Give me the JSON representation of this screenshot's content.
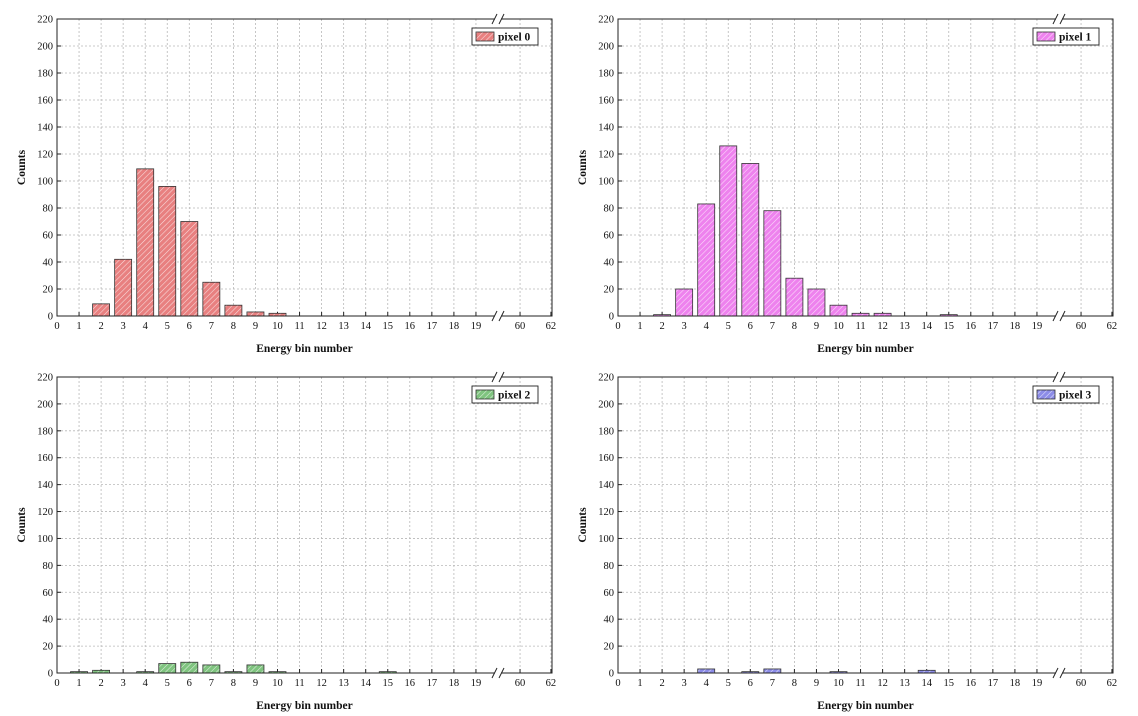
{
  "chart_data": [
    {
      "type": "bar",
      "xlabel": "Energy bin number",
      "ylabel": "Counts",
      "ylim": [
        0,
        220
      ],
      "yticks": [
        0,
        20,
        40,
        60,
        80,
        100,
        120,
        140,
        160,
        180,
        200,
        220
      ],
      "x_ticks": [
        "0",
        "1",
        "2",
        "3",
        "4",
        "5",
        "6",
        "7",
        "8",
        "9",
        "10",
        "11",
        "12",
        "13",
        "14",
        "15",
        "16",
        "17",
        "18",
        "19",
        "60",
        "62"
      ],
      "x_axis_break": "between 19 and 60",
      "grid": true,
      "legend": "top-right",
      "series": [
        {
          "name": "pixel 0",
          "color": "#e88080",
          "points": [
            [
              2,
              9
            ],
            [
              3,
              42
            ],
            [
              4,
              109
            ],
            [
              5,
              96
            ],
            [
              6,
              70
            ],
            [
              7,
              25
            ],
            [
              8,
              8
            ],
            [
              9,
              3
            ],
            [
              10,
              2
            ]
          ]
        }
      ]
    },
    {
      "type": "bar",
      "xlabel": "Energy bin number",
      "ylabel": "Counts",
      "ylim": [
        0,
        220
      ],
      "yticks": [
        0,
        20,
        40,
        60,
        80,
        100,
        120,
        140,
        160,
        180,
        200,
        220
      ],
      "x_ticks": [
        "0",
        "1",
        "2",
        "3",
        "4",
        "5",
        "6",
        "7",
        "8",
        "9",
        "10",
        "11",
        "12",
        "13",
        "14",
        "15",
        "16",
        "17",
        "18",
        "19",
        "60",
        "62"
      ],
      "x_axis_break": "between 19 and 60",
      "grid": true,
      "legend": "top-right",
      "series": [
        {
          "name": "pixel 1",
          "color": "#ee82ee",
          "points": [
            [
              2,
              1
            ],
            [
              3,
              20
            ],
            [
              4,
              83
            ],
            [
              5,
              126
            ],
            [
              6,
              113
            ],
            [
              7,
              78
            ],
            [
              8,
              28
            ],
            [
              9,
              20
            ],
            [
              10,
              8
            ],
            [
              11,
              2
            ],
            [
              12,
              2
            ],
            [
              15,
              1
            ]
          ]
        }
      ]
    },
    {
      "type": "bar",
      "xlabel": "Energy bin number",
      "ylabel": "Counts",
      "ylim": [
        0,
        220
      ],
      "yticks": [
        0,
        20,
        40,
        60,
        80,
        100,
        120,
        140,
        160,
        180,
        200,
        220
      ],
      "x_ticks": [
        "0",
        "1",
        "2",
        "3",
        "4",
        "5",
        "6",
        "7",
        "8",
        "9",
        "10",
        "11",
        "12",
        "13",
        "14",
        "15",
        "16",
        "17",
        "18",
        "19",
        "60",
        "62"
      ],
      "x_axis_break": "between 19 and 60",
      "grid": true,
      "legend": "top-right",
      "series": [
        {
          "name": "pixel 2",
          "color": "#7fc47f",
          "points": [
            [
              1,
              1
            ],
            [
              2,
              2
            ],
            [
              4,
              1
            ],
            [
              5,
              7
            ],
            [
              6,
              8
            ],
            [
              7,
              6
            ],
            [
              8,
              1
            ],
            [
              9,
              6
            ],
            [
              10,
              1
            ],
            [
              15,
              1
            ]
          ]
        }
      ]
    },
    {
      "type": "bar",
      "xlabel": "Energy bin number",
      "ylabel": "Counts",
      "ylim": [
        0,
        220
      ],
      "yticks": [
        0,
        20,
        40,
        60,
        80,
        100,
        120,
        140,
        160,
        180,
        200,
        220
      ],
      "x_ticks": [
        "0",
        "1",
        "2",
        "3",
        "4",
        "5",
        "6",
        "7",
        "8",
        "9",
        "10",
        "11",
        "12",
        "13",
        "14",
        "15",
        "16",
        "17",
        "18",
        "19",
        "60",
        "62"
      ],
      "x_axis_break": "between 19 and 60",
      "grid": true,
      "legend": "top-right",
      "series": [
        {
          "name": "pixel 3",
          "color": "#8c8ce8",
          "points": [
            [
              4,
              3
            ],
            [
              6,
              1
            ],
            [
              7,
              3
            ],
            [
              10,
              1
            ],
            [
              14,
              2
            ]
          ]
        }
      ]
    }
  ]
}
